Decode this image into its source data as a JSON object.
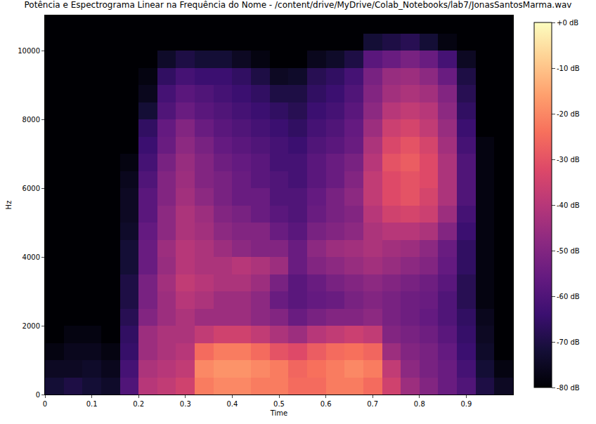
{
  "chart_data": {
    "type": "heatmap",
    "title": "Potência e Espectrograma Linear na Frequência do Nome - /content/drive/MyDrive/Colab_Notebooks/lab7/JonasSantosMarma.wav",
    "x_label": "Time",
    "y_label": "Hz",
    "xlim": [
      0,
      1.0
    ],
    "xticks": [
      0,
      0.1,
      0.2,
      0.3,
      0.4,
      0.5,
      0.6,
      0.7,
      0.8,
      0.9
    ],
    "ylim": [
      0,
      11025
    ],
    "yticks": [
      0,
      2000,
      4000,
      6000,
      8000,
      10000
    ],
    "x": [
      0.02,
      0.06,
      0.1,
      0.14,
      0.18,
      0.22,
      0.26,
      0.3,
      0.34,
      0.38,
      0.42,
      0.46,
      0.5,
      0.54,
      0.58,
      0.62,
      0.66,
      0.7,
      0.74,
      0.78,
      0.82,
      0.86,
      0.9,
      0.94,
      0.98
    ],
    "y": [
      250,
      750,
      1250,
      1750,
      2250,
      2750,
      3250,
      3750,
      4250,
      4750,
      5250,
      5750,
      6250,
      6750,
      7250,
      7750,
      8250,
      8750,
      9250,
      9750,
      10250,
      10750
    ],
    "z": [
      [
        -72,
        -70,
        -72,
        -74,
        -60,
        -40,
        -38,
        -35,
        -22,
        -20,
        -20,
        -22,
        -22,
        -25,
        -25,
        -22,
        -22,
        -25,
        -35,
        -45,
        -50,
        -55,
        -60,
        -70,
        -75
      ],
      [
        -75,
        -75,
        -74,
        -76,
        -62,
        -42,
        -40,
        -38,
        -20,
        -18,
        -18,
        -20,
        -22,
        -26,
        -24,
        -22,
        -20,
        -22,
        -38,
        -48,
        -52,
        -55,
        -62,
        -72,
        -78
      ],
      [
        -78,
        -76,
        -76,
        -78,
        -65,
        -45,
        -42,
        -40,
        -25,
        -22,
        -22,
        -25,
        -30,
        -32,
        -28,
        -25,
        -24,
        -26,
        -45,
        -50,
        -52,
        -56,
        -64,
        -74,
        -80
      ],
      [
        -80,
        -78,
        -78,
        -80,
        -66,
        -45,
        -42,
        -42,
        -38,
        -35,
        -35,
        -38,
        -42,
        -45,
        -40,
        -38,
        -36,
        -38,
        -50,
        -52,
        -54,
        -58,
        -65,
        -75,
        -80
      ],
      [
        -80,
        -80,
        -80,
        -80,
        -68,
        -50,
        -45,
        -42,
        -45,
        -45,
        -45,
        -48,
        -50,
        -55,
        -52,
        -50,
        -50,
        -48,
        -52,
        -54,
        -56,
        -60,
        -66,
        -76,
        -80
      ],
      [
        -80,
        -80,
        -80,
        -80,
        -70,
        -52,
        -45,
        -40,
        -42,
        -45,
        -45,
        -48,
        -55,
        -58,
        -56,
        -55,
        -52,
        -50,
        -52,
        -54,
        -55,
        -60,
        -68,
        -78,
        -80
      ],
      [
        -80,
        -80,
        -80,
        -80,
        -70,
        -52,
        -44,
        -38,
        -40,
        -42,
        -42,
        -45,
        -52,
        -58,
        -55,
        -52,
        -50,
        -48,
        -50,
        -52,
        -54,
        -58,
        -68,
        -78,
        -80
      ],
      [
        -80,
        -80,
        -80,
        -80,
        -72,
        -55,
        -46,
        -40,
        -42,
        -42,
        -40,
        -42,
        -45,
        -55,
        -50,
        -48,
        -46,
        -44,
        -46,
        -48,
        -50,
        -56,
        -66,
        -78,
        -80
      ],
      [
        -80,
        -80,
        -80,
        -80,
        -72,
        -55,
        -45,
        -40,
        -42,
        -45,
        -48,
        -50,
        -50,
        -55,
        -48,
        -45,
        -44,
        -42,
        -44,
        -45,
        -48,
        -55,
        -66,
        -78,
        -80
      ],
      [
        -80,
        -80,
        -80,
        -80,
        -74,
        -56,
        -48,
        -42,
        -44,
        -48,
        -50,
        -50,
        -55,
        -58,
        -52,
        -50,
        -48,
        -42,
        -40,
        -40,
        -42,
        -50,
        -64,
        -78,
        -80
      ],
      [
        -80,
        -80,
        -80,
        -80,
        -75,
        -58,
        -48,
        -42,
        -45,
        -50,
        -52,
        -55,
        -58,
        -60,
        -55,
        -52,
        -50,
        -40,
        -35,
        -34,
        -36,
        -45,
        -62,
        -78,
        -80
      ],
      [
        -80,
        -80,
        -80,
        -80,
        -75,
        -58,
        -50,
        -44,
        -48,
        -52,
        -55,
        -55,
        -60,
        -60,
        -56,
        -52,
        -48,
        -38,
        -32,
        -30,
        -34,
        -42,
        -60,
        -78,
        -80
      ],
      [
        -80,
        -80,
        -80,
        -80,
        -76,
        -60,
        -50,
        -45,
        -50,
        -52,
        -55,
        -58,
        -60,
        -62,
        -58,
        -55,
        -50,
        -38,
        -32,
        -30,
        -32,
        -42,
        -60,
        -78,
        -80
      ],
      [
        -80,
        -80,
        -80,
        -80,
        -78,
        -62,
        -52,
        -46,
        -50,
        -54,
        -56,
        -58,
        -62,
        -62,
        -58,
        -55,
        -52,
        -40,
        -30,
        -28,
        -32,
        -42,
        -60,
        -78,
        -80
      ],
      [
        -80,
        -80,
        -80,
        -80,
        -80,
        -64,
        -55,
        -48,
        -52,
        -56,
        -58,
        -60,
        -62,
        -64,
        -60,
        -58,
        -55,
        -42,
        -33,
        -30,
        -34,
        -44,
        -62,
        -78,
        -80
      ],
      [
        -80,
        -80,
        -80,
        -80,
        -80,
        -66,
        -56,
        -50,
        -55,
        -58,
        -60,
        -62,
        -64,
        -66,
        -62,
        -60,
        -56,
        -45,
        -36,
        -34,
        -38,
        -46,
        -64,
        -80,
        -80
      ],
      [
        -80,
        -80,
        -80,
        -80,
        -80,
        -72,
        -60,
        -55,
        -58,
        -60,
        -62,
        -64,
        -66,
        -68,
        -64,
        -62,
        -58,
        -48,
        -40,
        -38,
        -40,
        -48,
        -66,
        -80,
        -80
      ],
      [
        -80,
        -80,
        -80,
        -80,
        -80,
        -76,
        -62,
        -58,
        -60,
        -62,
        -64,
        -66,
        -70,
        -70,
        -66,
        -64,
        -60,
        -50,
        -44,
        -42,
        -44,
        -50,
        -68,
        -80,
        -80
      ],
      [
        -80,
        -80,
        -80,
        -80,
        -80,
        -78,
        -66,
        -62,
        -64,
        -64,
        -66,
        -70,
        -75,
        -74,
        -68,
        -66,
        -62,
        -52,
        -46,
        -45,
        -48,
        -55,
        -70,
        -80,
        -80
      ],
      [
        -80,
        -80,
        -80,
        -80,
        -80,
        -80,
        -74,
        -70,
        -72,
        -72,
        -75,
        -78,
        -80,
        -80,
        -76,
        -74,
        -70,
        -58,
        -55,
        -52,
        -55,
        -62,
        -75,
        -80,
        -80
      ],
      [
        -80,
        -80,
        -80,
        -80,
        -80,
        -80,
        -80,
        -80,
        -80,
        -80,
        -80,
        -80,
        -80,
        -80,
        -80,
        -80,
        -80,
        -72,
        -70,
        -68,
        -72,
        -78,
        -80,
        -80,
        -80
      ],
      [
        -80,
        -80,
        -80,
        -80,
        -80,
        -80,
        -80,
        -80,
        -80,
        -80,
        -80,
        -80,
        -80,
        -80,
        -80,
        -80,
        -80,
        -80,
        -80,
        -80,
        -80,
        -80,
        -80,
        -80,
        -80
      ]
    ],
    "zlim": [
      -80,
      0
    ],
    "zticks": [
      {
        "value": -80,
        "label": "-80 dB"
      },
      {
        "value": -70,
        "label": "-70 dB"
      },
      {
        "value": -60,
        "label": "-60 dB"
      },
      {
        "value": -50,
        "label": "-50 dB"
      },
      {
        "value": -40,
        "label": "-40 dB"
      },
      {
        "value": -30,
        "label": "-30 dB"
      },
      {
        "value": -20,
        "label": "-20 dB"
      },
      {
        "value": -10,
        "label": "-10 dB"
      },
      {
        "value": 0,
        "label": "+0 dB"
      }
    ]
  }
}
